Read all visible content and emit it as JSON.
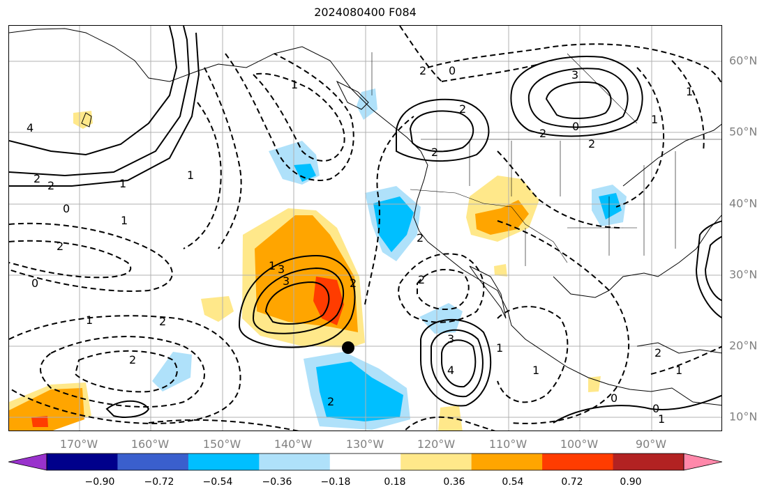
{
  "title": "2024080400 F084",
  "lat_labels": [
    "60°N",
    "50°N",
    "40°N",
    "30°N",
    "20°N",
    "10°N"
  ],
  "lon_labels": [
    "170°W",
    "160°W",
    "150°W",
    "140°W",
    "130°W",
    "120°W",
    "110°W",
    "100°W",
    "90°W"
  ],
  "colorbar": {
    "ticks": [
      "−0.90",
      "−0.72",
      "−0.54",
      "−0.36",
      "−0.18",
      "0.18",
      "0.36",
      "0.54",
      "0.72",
      "0.90"
    ],
    "colors": [
      "#9932cc",
      "#00008b",
      "#3a5fcd",
      "#00bfff",
      "#afe1fa",
      "#ffffff",
      "#ffe88a",
      "#ffa500",
      "#ff3c00",
      "#b22222",
      "#ff88aa"
    ]
  },
  "contour_labels": [
    "4",
    "2",
    "2",
    "1",
    "0",
    "1",
    "2",
    "0",
    "1",
    "2",
    "2",
    "1",
    "3",
    "3",
    "1",
    "2",
    "2",
    "0",
    "2",
    "2",
    "2",
    "3",
    "2",
    "0",
    "1",
    "1",
    "3",
    "4",
    "2",
    "2",
    "1",
    "0",
    "1",
    "2",
    "1",
    "0",
    "2",
    "1",
    "1"
  ],
  "marker": {
    "label": "black-dot"
  }
}
